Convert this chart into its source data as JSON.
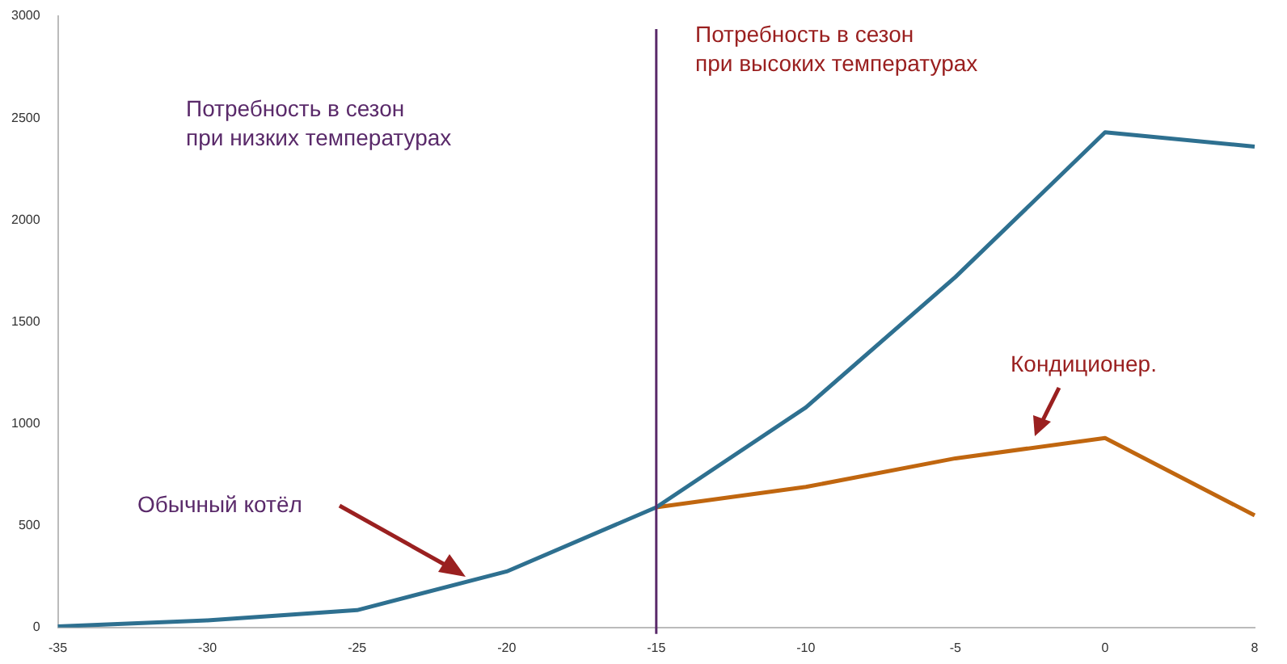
{
  "chart_data": {
    "type": "line",
    "categories": [
      "-35",
      "-30",
      "-25",
      "-20",
      "-15",
      "-10",
      "-5",
      "0",
      "8"
    ],
    "series": [
      {
        "color": "#2e7090",
        "values": [
          5,
          35,
          85,
          275,
          590,
          1080,
          1720,
          2430,
          2360
        ]
      },
      {
        "color": "#c0660f",
        "values": [
          null,
          null,
          null,
          null,
          590,
          690,
          830,
          930,
          550
        ]
      }
    ],
    "ylim": [
      0,
      3000
    ],
    "yticks": [
      0,
      500,
      1000,
      1500,
      2000,
      2500,
      3000
    ],
    "grid": false,
    "legend": false,
    "marker": "none",
    "line_style": "solid",
    "ref_lines": [
      {
        "axis": "x",
        "value": "-15",
        "color": "#5a2a6a"
      }
    ],
    "annotations": [
      "Потребность в сезон\nпри низких температурах",
      "Потребность в сезон\nпри высоких температурах",
      "Обычный котёл",
      "Кондиционер."
    ]
  }
}
